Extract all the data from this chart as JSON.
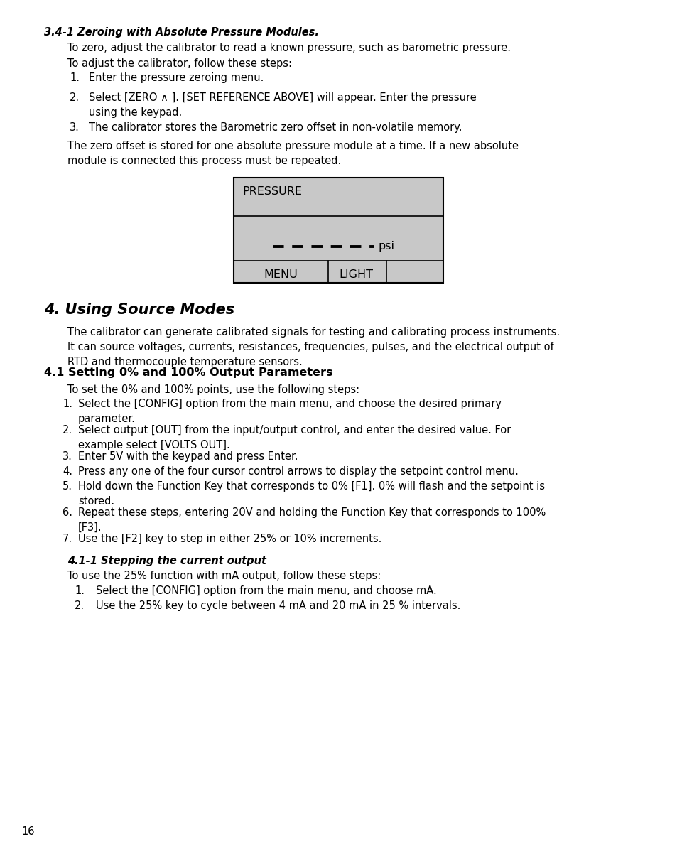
{
  "page_number": "16",
  "background_color": "#ffffff",
  "text_color": "#000000",
  "section_title_bold_italic": "3.4-1 Zeroing with Absolute Pressure Modules.",
  "para1": "To zero, adjust the calibrator to read a known pressure, such as barometric pressure.",
  "para2": "To adjust the calibrator, follow these steps:",
  "steps_34": [
    "Enter the pressure zeroing menu.",
    "Select [ZERO ∧ ]. [SET REFERENCE ABOVE] will appear. Enter the pressure\nusing the keypad.",
    "The calibrator stores the Barometric zero offset in non-volatile memory."
  ],
  "para3": "The zero offset is stored for one absolute pressure module at a time. If a new absolute\nmodule is connected this process must be repeated.",
  "display_box_color": "#c8c8c8",
  "display_label_pressure": "PRESSURE",
  "display_psi": "psi",
  "display_menu": "MENU",
  "display_light": "LIGHT",
  "section4_title": "4. Using Source Modes",
  "section4_para1": "The calibrator can generate calibrated signals for testing and calibrating process instruments.\nIt can source voltages, currents, resistances, frequencies, pulses, and the electrical output of\nRTD and thermocouple temperature sensors.",
  "section41_title": "4.1 Setting 0% and 100% Output Parameters",
  "section41_para": "To set the 0% and 100% points, use the following steps:",
  "steps_41": [
    "Select the [CONFIG] option from the main menu, and choose the desired primary\nparameter.",
    "Select output [OUT] from the input/output control, and enter the desired value. For\nexample select [VOLTS OUT].",
    "Enter 5V with the keypad and press Enter.",
    "Press any one of the four cursor control arrows to display the setpoint control menu.",
    "Hold down the Function Key that corresponds to 0% [F1]. 0% will flash and the setpoint is\nstored.",
    "Repeat these steps, entering 20V and holding the Function Key that corresponds to 100%\n[F3].",
    "Use the [F2] key to step in either 25% or 10% increments."
  ],
  "section411_title": "4.1-1 Stepping the current output",
  "section411_para": "To use the 25% function with mA output, follow these steps:",
  "steps_411": [
    "Select the [CONFIG] option from the main menu, and choose mA.",
    "Use the 25% key to cycle between 4 mA and 20 mA in 25 % intervals."
  ]
}
